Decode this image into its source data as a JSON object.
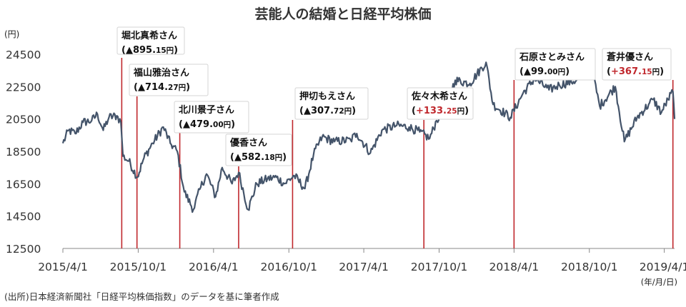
{
  "colors": {
    "line": "#44546a",
    "marker": "#c0282d",
    "negative": "#111111",
    "positive": "#c0282d",
    "axis": "#888888"
  },
  "chart_data": {
    "type": "line",
    "title": "芸能人の結婚と日経平均株価",
    "ylabel": "(円)",
    "xlabel": "(年/月/日)",
    "source": "(出所)日本経済新聞社「日経平均株価指数」のデータを基に筆者作成",
    "ylim": [
      12500,
      25000
    ],
    "yticks": [
      "12500",
      "14500",
      "16500",
      "18500",
      "20500",
      "22500",
      "24500"
    ],
    "xlim": [
      "2015-04-01",
      "2019-04-26"
    ],
    "xticks": [
      {
        "date": "2015-04-01",
        "label": "2015/4/1"
      },
      {
        "date": "2015-10-01",
        "label": "2015/10/1"
      },
      {
        "date": "2016-04-01",
        "label": "2016/4/1"
      },
      {
        "date": "2016-10-01",
        "label": "2016/10/1"
      },
      {
        "date": "2017-04-01",
        "label": "2017/4/1"
      },
      {
        "date": "2017-10-01",
        "label": "2017/10/1"
      },
      {
        "date": "2018-04-01",
        "label": "2018/4/1"
      },
      {
        "date": "2018-10-01",
        "label": "2018/10/1"
      },
      {
        "date": "2019-04-01",
        "label": "2019/4/1"
      }
    ],
    "grid": false,
    "series": [
      {
        "points": [
          [
            "2015-04-01",
            19000
          ],
          [
            "2015-04-15",
            19800
          ],
          [
            "2015-05-01",
            19600
          ],
          [
            "2015-05-20",
            20300
          ],
          [
            "2015-06-10",
            20400
          ],
          [
            "2015-06-24",
            20800
          ],
          [
            "2015-07-08",
            19800
          ],
          [
            "2015-07-22",
            20600
          ],
          [
            "2015-08-10",
            20700
          ],
          [
            "2015-08-20",
            20300
          ],
          [
            "2015-08-25",
            18200
          ],
          [
            "2015-09-08",
            17900
          ],
          [
            "2015-09-29",
            16900
          ],
          [
            "2015-10-15",
            18100
          ],
          [
            "2015-11-05",
            19000
          ],
          [
            "2015-12-01",
            20000
          ],
          [
            "2015-12-18",
            19000
          ],
          [
            "2016-01-04",
            18500
          ],
          [
            "2016-01-21",
            16000
          ],
          [
            "2016-02-12",
            14900
          ],
          [
            "2016-03-01",
            16300
          ],
          [
            "2016-03-15",
            17100
          ],
          [
            "2016-04-06",
            15700
          ],
          [
            "2016-04-22",
            17500
          ],
          [
            "2016-05-16",
            16500
          ],
          [
            "2016-06-01",
            17200
          ],
          [
            "2016-06-24",
            14900
          ],
          [
            "2016-07-15",
            16500
          ],
          [
            "2016-08-10",
            16800
          ],
          [
            "2016-09-01",
            16900
          ],
          [
            "2016-09-20",
            16500
          ],
          [
            "2016-10-14",
            17000
          ],
          [
            "2016-11-09",
            16200
          ],
          [
            "2016-11-30",
            18300
          ],
          [
            "2016-12-21",
            19400
          ],
          [
            "2017-01-20",
            19100
          ],
          [
            "2017-02-28",
            19200
          ],
          [
            "2017-03-15",
            19600
          ],
          [
            "2017-04-17",
            18400
          ],
          [
            "2017-05-15",
            19800
          ],
          [
            "2017-06-20",
            20100
          ],
          [
            "2017-07-20",
            20000
          ],
          [
            "2017-08-15",
            19700
          ],
          [
            "2017-09-08",
            19300
          ],
          [
            "2017-09-25",
            20400
          ],
          [
            "2017-10-20",
            21500
          ],
          [
            "2017-11-09",
            22900
          ],
          [
            "2017-12-15",
            22700
          ],
          [
            "2018-01-23",
            24000
          ],
          [
            "2018-02-09",
            21400
          ],
          [
            "2018-03-23",
            20600
          ],
          [
            "2018-04-23",
            22100
          ],
          [
            "2018-05-21",
            23000
          ],
          [
            "2018-06-25",
            22300
          ],
          [
            "2018-07-20",
            22600
          ],
          [
            "2018-08-31",
            22900
          ],
          [
            "2018-10-02",
            24200
          ],
          [
            "2018-10-26",
            21300
          ],
          [
            "2018-12-03",
            22500
          ],
          [
            "2018-12-25",
            19100
          ],
          [
            "2019-01-25",
            20600
          ],
          [
            "2019-02-22",
            21400
          ],
          [
            "2019-03-05",
            21700
          ],
          [
            "2019-03-25",
            20900
          ],
          [
            "2019-04-10",
            21700
          ],
          [
            "2019-04-22",
            22200
          ],
          [
            "2019-04-26",
            20500
          ]
        ]
      }
    ],
    "annotations": [
      {
        "name": "堀北真希さん",
        "sign": "▲",
        "int": "895.",
        "dec": "15",
        "unit": "円",
        "date": "2015-08-22",
        "change": -895.15,
        "dir": "negative"
      },
      {
        "name": "福山雅治さん",
        "sign": "▲",
        "int": "714.",
        "dec": "27",
        "unit": "円",
        "date": "2015-09-28",
        "change": -714.27,
        "dir": "negative"
      },
      {
        "name": "北川景子さん",
        "sign": "▲",
        "int": "479.",
        "dec": "00",
        "unit": "円",
        "date": "2016-01-10",
        "change": -479.0,
        "dir": "negative"
      },
      {
        "name": "優香さん",
        "sign": "▲",
        "int": "582.",
        "dec": "18",
        "unit": "円",
        "date": "2016-06-01",
        "change": -582.18,
        "dir": "negative"
      },
      {
        "name": "押切もえさん",
        "sign": "▲",
        "int": "307.",
        "dec": "72",
        "unit": "円",
        "date": "2016-10-10",
        "change": -307.72,
        "dir": "negative"
      },
      {
        "name": "佐々木希さん",
        "sign": "+",
        "int": "133.",
        "dec": "25",
        "unit": "円",
        "date": "2017-08-25",
        "change": 133.25,
        "dir": "positive"
      },
      {
        "name": "石原さとみさん",
        "sign": "▲",
        "int": "99.",
        "dec": "00",
        "unit": "円",
        "date": "2018-04-01",
        "change": -99.0,
        "dir": "negative"
      },
      {
        "name": "蒼井優さん",
        "sign": "+",
        "int": "367.",
        "dec": "15",
        "unit": "円",
        "date": "2019-04-22",
        "change": 367.15,
        "dir": "positive"
      }
    ]
  }
}
